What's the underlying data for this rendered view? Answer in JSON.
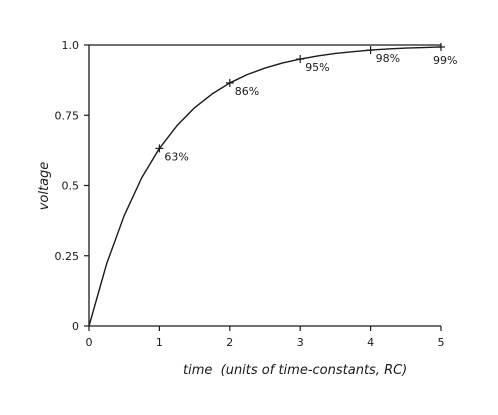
{
  "chart_data": {
    "type": "line",
    "title": "",
    "xlabel": "time  (units of time-constants, RC)",
    "ylabel": "voltage",
    "xlim": [
      0,
      5
    ],
    "ylim": [
      0,
      1.0
    ],
    "grid": false,
    "x_ticks": [
      0,
      1,
      2,
      3,
      4,
      5
    ],
    "x_tick_labels": [
      "0",
      "1",
      "2",
      "3",
      "4",
      "5"
    ],
    "y_ticks": [
      0,
      0.25,
      0.5,
      0.75,
      1.0
    ],
    "y_tick_labels": [
      "0",
      "0.25",
      "0.5",
      "0.75",
      "1.0"
    ],
    "reference_line": {
      "y": 1.0
    },
    "series": [
      {
        "x": [
          0,
          0.25,
          0.5,
          0.75,
          1,
          1.25,
          1.5,
          1.75,
          2,
          2.25,
          2.5,
          2.75,
          3,
          3.25,
          3.5,
          3.75,
          4,
          4.25,
          4.5,
          4.75,
          5
        ],
        "values": [
          0,
          0.221,
          0.393,
          0.528,
          0.632,
          0.713,
          0.777,
          0.826,
          0.865,
          0.895,
          0.918,
          0.936,
          0.95,
          0.961,
          0.97,
          0.976,
          0.982,
          0.986,
          0.989,
          0.991,
          0.993
        ]
      }
    ],
    "marked_points": [
      {
        "x": 1,
        "y": 0.632,
        "label": "63%"
      },
      {
        "x": 2,
        "y": 0.865,
        "label": "86%"
      },
      {
        "x": 3,
        "y": 0.95,
        "label": "95%"
      },
      {
        "x": 4,
        "y": 0.982,
        "label": "98%"
      },
      {
        "x": 5,
        "y": 0.993,
        "label": "99%"
      }
    ],
    "colors": {
      "ink": "#1a1a1a",
      "background": "#ffffff"
    }
  }
}
